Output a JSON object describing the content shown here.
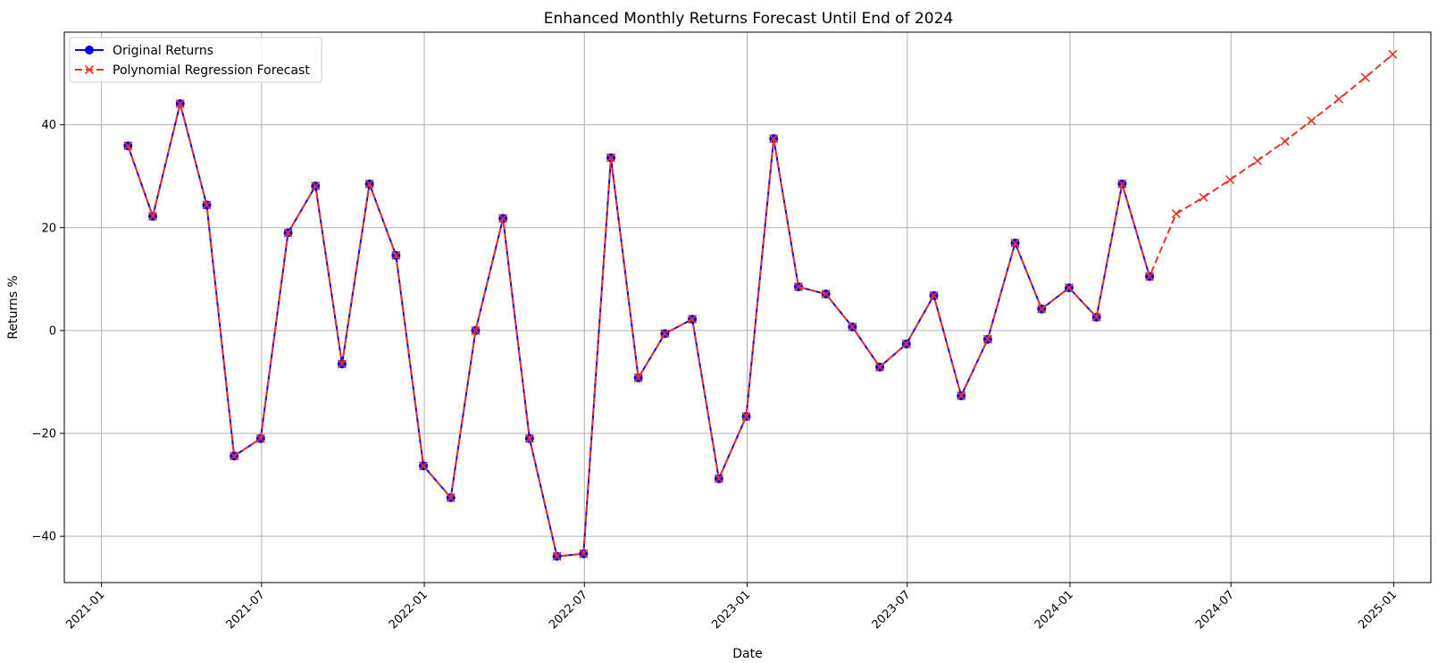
{
  "chart_data": {
    "type": "line",
    "title": "Enhanced Monthly Returns Forecast Until End of 2024",
    "xlabel": "Date",
    "ylabel": "Returns %",
    "xlim": [
      "2020-11-20",
      "2025-02-12"
    ],
    "ylim": [
      -49,
      58
    ],
    "x_ticks": [
      "2021-01",
      "2021-07",
      "2022-01",
      "2022-07",
      "2023-01",
      "2023-07",
      "2024-01",
      "2024-07",
      "2025-01"
    ],
    "y_ticks": [
      -40,
      -20,
      0,
      20,
      40
    ],
    "grid": true,
    "legend_position": "top-left",
    "series": [
      {
        "name": "Original Returns",
        "color": "#0000ff",
        "marker": "circle",
        "line_style": "solid",
        "x": [
          "2021-01-31",
          "2021-02-28",
          "2021-03-31",
          "2021-04-30",
          "2021-05-31",
          "2021-06-30",
          "2021-07-31",
          "2021-08-31",
          "2021-09-30",
          "2021-10-31",
          "2021-11-30",
          "2021-12-31",
          "2022-01-31",
          "2022-02-28",
          "2022-03-31",
          "2022-04-30",
          "2022-05-31",
          "2022-06-30",
          "2022-07-31",
          "2022-08-31",
          "2022-09-30",
          "2022-10-31",
          "2022-11-30",
          "2022-12-31",
          "2023-01-31",
          "2023-02-28",
          "2023-03-31",
          "2023-04-30",
          "2023-05-31",
          "2023-06-30",
          "2023-07-31",
          "2023-08-31",
          "2023-09-30",
          "2023-10-31",
          "2023-11-30",
          "2023-12-31",
          "2024-01-31",
          "2024-02-29",
          "2024-03-31"
        ],
        "values": [
          35.9,
          22.2,
          44.1,
          24.4,
          -24.4,
          -21.0,
          19.0,
          28.1,
          -6.5,
          28.5,
          14.6,
          -26.3,
          -32.5,
          0.0,
          21.8,
          -21.0,
          -43.9,
          -43.4,
          33.6,
          -9.2,
          -0.6,
          2.2,
          -28.8,
          -16.7,
          37.3,
          8.5,
          7.1,
          0.7,
          -7.1,
          -2.6,
          6.8,
          -12.7,
          -1.7,
          17.0,
          4.2,
          8.3,
          2.6,
          28.5,
          10.5
        ]
      },
      {
        "name": "Polynomial Regression Forecast",
        "color": "#e8342a",
        "marker": "x",
        "line_style": "dashed",
        "x": [
          "2021-01-31",
          "2021-02-28",
          "2021-03-31",
          "2021-04-30",
          "2021-05-31",
          "2021-06-30",
          "2021-07-31",
          "2021-08-31",
          "2021-09-30",
          "2021-10-31",
          "2021-11-30",
          "2021-12-31",
          "2022-01-31",
          "2022-02-28",
          "2022-03-31",
          "2022-04-30",
          "2022-05-31",
          "2022-06-30",
          "2022-07-31",
          "2022-08-31",
          "2022-09-30",
          "2022-10-31",
          "2022-11-30",
          "2022-12-31",
          "2023-01-31",
          "2023-02-28",
          "2023-03-31",
          "2023-04-30",
          "2023-05-31",
          "2023-06-30",
          "2023-07-31",
          "2023-08-31",
          "2023-09-30",
          "2023-10-31",
          "2023-11-30",
          "2023-12-31",
          "2024-01-31",
          "2024-02-29",
          "2024-03-31",
          "2024-04-30",
          "2024-05-31",
          "2024-06-30",
          "2024-07-31",
          "2024-08-31",
          "2024-09-30",
          "2024-10-31",
          "2024-11-30",
          "2024-12-31"
        ],
        "values": [
          35.9,
          22.2,
          44.1,
          24.4,
          -24.4,
          -21.0,
          19.0,
          28.1,
          -6.5,
          28.5,
          14.6,
          -26.3,
          -32.5,
          0.0,
          21.8,
          -21.0,
          -43.9,
          -43.4,
          33.6,
          -9.2,
          -0.6,
          2.2,
          -28.8,
          -16.7,
          37.3,
          8.5,
          7.1,
          0.7,
          -7.1,
          -2.6,
          6.8,
          -12.7,
          -1.7,
          17.0,
          4.2,
          8.3,
          2.6,
          28.5,
          10.5,
          22.7,
          25.9,
          29.3,
          33.0,
          36.8,
          40.8,
          45.0,
          49.2,
          53.7
        ]
      }
    ]
  }
}
